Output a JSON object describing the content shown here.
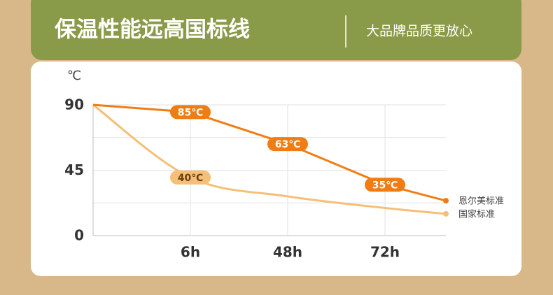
{
  "chart_data": {
    "type": "line",
    "title": "保温性能远高国标线",
    "subtitle": "大品牌品质更放心",
    "y_unit": "℃",
    "categories": [
      null,
      "6h",
      "48h",
      "72h",
      null
    ],
    "series": [
      {
        "name": "恩尔美标准",
        "color": "#f07d14",
        "smooth": false,
        "label_text_color": "#ffffff",
        "values": [
          90,
          85,
          63,
          35,
          24
        ],
        "value_labels": [
          null,
          "85℃",
          "63℃",
          "35℃",
          null
        ]
      },
      {
        "name": "国家标准",
        "color": "#f5bf78",
        "smooth": true,
        "label_text_color": "#6b3f12",
        "values": [
          90,
          40,
          27,
          19,
          15
        ],
        "value_labels": [
          null,
          "40℃",
          null,
          null,
          null
        ]
      }
    ],
    "ylim": [
      0,
      90
    ],
    "yticks": [
      0,
      45,
      90
    ],
    "minor_yticks": [
      22.5,
      67.5
    ],
    "grid": true
  }
}
